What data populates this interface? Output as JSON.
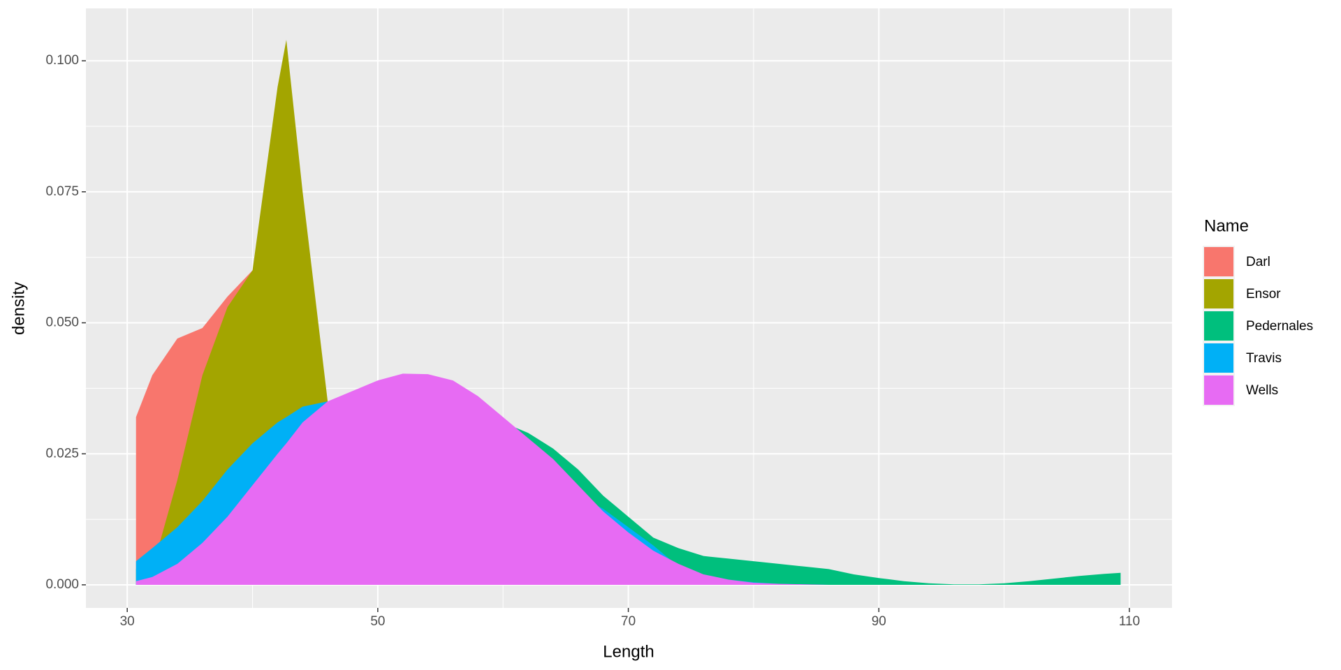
{
  "chart_data": {
    "type": "area",
    "x_label": "Length",
    "y_label": "density",
    "legend_title": "Name",
    "x": [
      30.7,
      32,
      34,
      36,
      38,
      40,
      42,
      42.7,
      44,
      46,
      48,
      50,
      52,
      54,
      56,
      58,
      60,
      62,
      64,
      66,
      68,
      70,
      72,
      74,
      76,
      78,
      80,
      82,
      84,
      86,
      88,
      90,
      92,
      94,
      96,
      98,
      100,
      102,
      104,
      106,
      108,
      109.3
    ],
    "series": [
      {
        "name": "Darl",
        "color": "#f8766d",
        "values": [
          0.032,
          0.04,
          0.047,
          0.049,
          0.055,
          0.06,
          0.056,
          0.053,
          0.045,
          0.035,
          0.025,
          0.015,
          0.008,
          0.004,
          0.002,
          0.001,
          0.0005,
          0,
          null,
          null,
          null,
          null,
          null,
          null,
          null,
          null,
          null,
          null,
          null,
          null,
          null,
          null,
          null,
          null,
          null,
          null,
          null,
          null,
          null,
          null,
          null,
          null
        ]
      },
      {
        "name": "Ensor",
        "color": "#a3a500",
        "values": [
          0,
          0.003,
          0.02,
          0.04,
          0.053,
          0.06,
          0.095,
          0.104,
          0.075,
          0.035,
          0.01,
          0.002,
          0.0005,
          0,
          0,
          0,
          0,
          0,
          null,
          null,
          null,
          null,
          null,
          null,
          null,
          null,
          null,
          null,
          null,
          null,
          null,
          null,
          null,
          null,
          null,
          null,
          null,
          null,
          null,
          null,
          null,
          null
        ]
      },
      {
        "name": "Pedernales",
        "color": "#00bf7d",
        "values": [
          0.003,
          0.005,
          0.009,
          0.014,
          0.019,
          0.024,
          0.028,
          0.029,
          0.031,
          0.034,
          0.036,
          0.037,
          0.037,
          0.036,
          0.035,
          0.033,
          0.031,
          0.029,
          0.026,
          0.022,
          0.017,
          0.013,
          0.009,
          0.007,
          0.0055,
          0.005,
          0.0045,
          0.004,
          0.0035,
          0.003,
          0.002,
          0.0013,
          0.0007,
          0.0003,
          0.0001,
          0.0001,
          0.0003,
          0.0007,
          0.0012,
          0.0017,
          0.0021,
          0.0023
        ]
      },
      {
        "name": "Travis",
        "color": "#00b0f6",
        "values": [
          0.0045,
          0.007,
          0.011,
          0.016,
          0.022,
          0.027,
          0.031,
          0.032,
          0.034,
          0.035,
          0.035,
          0.034,
          0.033,
          0.032,
          0.031,
          0.029,
          0.027,
          0.025,
          0.021,
          0.017,
          0.0145,
          0.011,
          0.0075,
          0.0035,
          0.002,
          0.001,
          0.0005,
          0.0002,
          0.0001,
          0,
          0,
          0,
          0,
          0,
          0,
          0,
          0,
          0,
          0,
          0,
          0,
          0
        ]
      },
      {
        "name": "Wells",
        "color": "#e76bf3",
        "values": [
          0.0007,
          0.0015,
          0.004,
          0.008,
          0.013,
          0.019,
          0.025,
          0.027,
          0.031,
          0.035,
          0.037,
          0.039,
          0.0403,
          0.0402,
          0.039,
          0.036,
          0.032,
          0.028,
          0.024,
          0.019,
          0.014,
          0.01,
          0.0065,
          0.004,
          0.002,
          0.001,
          0.0004,
          0.0002,
          0.0001,
          0,
          0,
          0,
          0,
          0,
          0,
          0,
          0,
          0,
          0,
          0,
          0,
          0
        ]
      }
    ],
    "xlim": [
      26.7,
      113.4
    ],
    "ylim": [
      -0.0044,
      0.11
    ],
    "xticks": [
      30,
      50,
      70,
      90,
      110
    ],
    "yticks": [
      {
        "value": 0,
        "label": "0.000"
      },
      {
        "value": 0.025,
        "label": "0.025"
      },
      {
        "value": 0.05,
        "label": "0.050"
      },
      {
        "value": 0.075,
        "label": "0.075"
      },
      {
        "value": 0.1,
        "label": "0.100"
      }
    ],
    "grid": true,
    "legend_position": "right"
  }
}
